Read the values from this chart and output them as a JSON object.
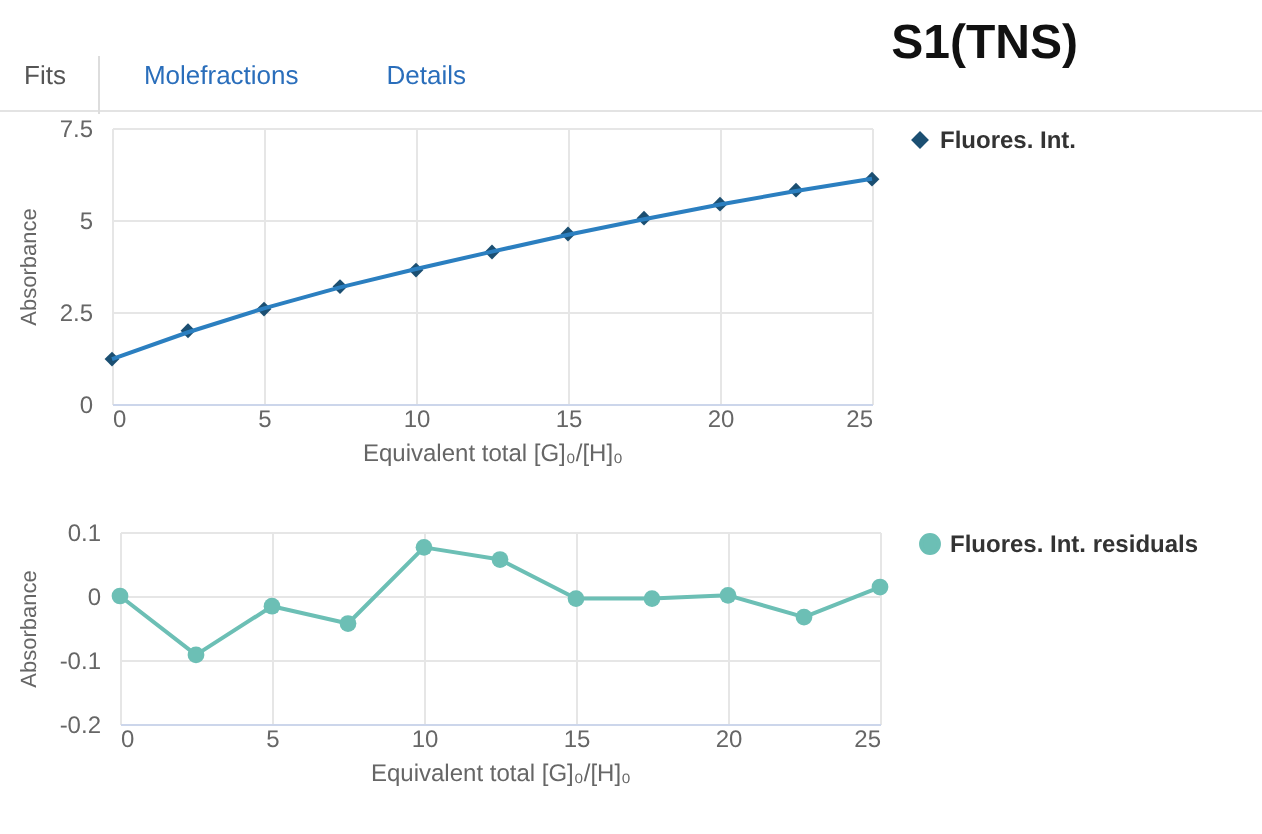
{
  "chart_data": [
    {
      "type": "scatter",
      "title": "S1(TNS)",
      "annotations": [
        "Fits",
        "Molefractions",
        "Details"
      ],
      "xlabel": "Equivalent total [G]₀/[H]₀",
      "ylabel": "Absorbance",
      "x": [
        0,
        2.5,
        5,
        7.5,
        10,
        12.5,
        15,
        17.5,
        20,
        22.5,
        25
      ],
      "xlim": [
        0,
        25
      ],
      "xticks": [
        0,
        5,
        10,
        15,
        20,
        25
      ],
      "ylim": [
        0,
        7.5
      ],
      "yticks": [
        0,
        2.5,
        5,
        7.5
      ],
      "grid": true,
      "legend": "top right",
      "marker": "diamond",
      "series": [
        {
          "name": "Fluores. Int.",
          "color": "#1b4f72",
          "values": [
            1.22,
            1.99,
            2.58,
            3.19,
            3.64,
            4.13,
            4.62,
            5.05,
            5.43,
            5.81,
            6.11
          ]
        },
        {
          "type": "line",
          "color": "#2b7fc0",
          "marker": "none",
          "values": [
            1.22,
            1.95,
            2.6,
            3.17,
            3.67,
            4.14,
            4.6,
            5.02,
            5.42,
            5.79,
            6.12
          ]
        }
      ]
    },
    {
      "type": "line",
      "xlabel": "Equivalent total [G]₀/[H]₀",
      "ylabel": "Absorbance",
      "x": [
        0,
        2.5,
        5,
        7.5,
        10,
        12.5,
        15,
        17.5,
        20,
        22.5,
        25
      ],
      "xlim": [
        0,
        25
      ],
      "xticks": [
        0,
        5,
        10,
        15,
        20,
        25
      ],
      "ylim": [
        -0.2,
        0.1
      ],
      "yticks": [
        -0.2,
        -0.1,
        0,
        0.1
      ],
      "grid": true,
      "legend": "top right",
      "marker": "circle",
      "series": [
        {
          "name": "Fluores. Int. residuals",
          "color": "#6cbfb5",
          "values": [
            0.0,
            -0.092,
            -0.016,
            -0.043,
            0.076,
            0.057,
            -0.004,
            -0.004,
            0.001,
            -0.033,
            0.014
          ]
        }
      ]
    }
  ]
}
